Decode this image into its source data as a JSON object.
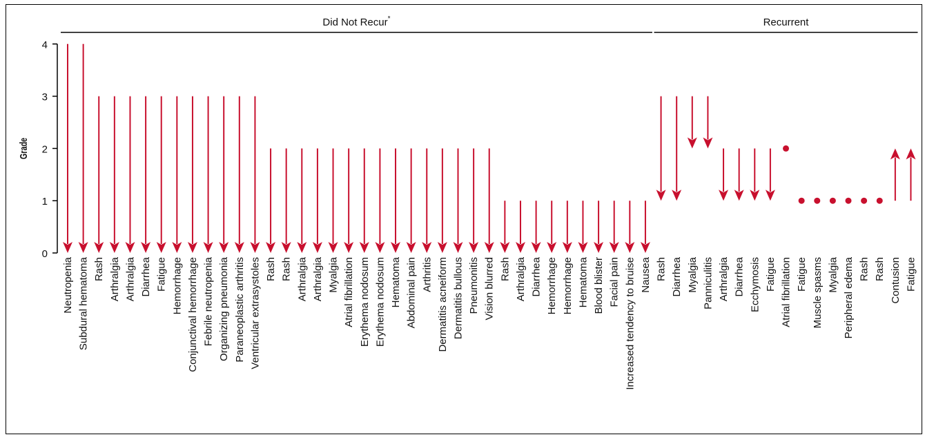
{
  "chart_data": {
    "type": "arrow",
    "ylabel": "Grade",
    "ylim": [
      0,
      4
    ],
    "yticks": [
      "0",
      "1",
      "2",
      "3",
      "4"
    ],
    "color": "#c8102e",
    "groups": [
      {
        "label": "Did Not Recur",
        "superscript": "*",
        "start": 0,
        "end": 37
      },
      {
        "label": "Recurrent",
        "start": 38,
        "end": 54
      }
    ],
    "events": [
      {
        "label": "Neutropenia",
        "from": 4,
        "to": 0
      },
      {
        "label": "Subdural hematoma",
        "from": 4,
        "to": 0
      },
      {
        "label": "Rash",
        "from": 3,
        "to": 0
      },
      {
        "label": "Arthralgia",
        "from": 3,
        "to": 0
      },
      {
        "label": "Arthralgia",
        "from": 3,
        "to": 0
      },
      {
        "label": "Diarrhea",
        "from": 3,
        "to": 0
      },
      {
        "label": "Fatigue",
        "from": 3,
        "to": 0
      },
      {
        "label": "Hemorrhage",
        "from": 3,
        "to": 0
      },
      {
        "label": "Conjunctival hemorrhage",
        "from": 3,
        "to": 0
      },
      {
        "label": "Febrile neutropenia",
        "from": 3,
        "to": 0
      },
      {
        "label": "Organizing pneumonia",
        "from": 3,
        "to": 0
      },
      {
        "label": "Paraneoplastic arthritis",
        "from": 3,
        "to": 0
      },
      {
        "label": "Ventricular extrasystoles",
        "from": 3,
        "to": 0
      },
      {
        "label": "Rash",
        "from": 2,
        "to": 0
      },
      {
        "label": "Rash",
        "from": 2,
        "to": 0
      },
      {
        "label": "Arthralgia",
        "from": 2,
        "to": 0
      },
      {
        "label": "Arthralgia",
        "from": 2,
        "to": 0
      },
      {
        "label": "Myalgia",
        "from": 2,
        "to": 0
      },
      {
        "label": "Atrial fibrillation",
        "from": 2,
        "to": 0
      },
      {
        "label": "Erythema nodosum",
        "from": 2,
        "to": 0
      },
      {
        "label": "Erythema nodosum",
        "from": 2,
        "to": 0
      },
      {
        "label": "Hematoma",
        "from": 2,
        "to": 0
      },
      {
        "label": "Abdominal pain",
        "from": 2,
        "to": 0
      },
      {
        "label": "Arthritis",
        "from": 2,
        "to": 0
      },
      {
        "label": "Dermatitis acneiform",
        "from": 2,
        "to": 0
      },
      {
        "label": "Dermatitis bullous",
        "from": 2,
        "to": 0
      },
      {
        "label": "Pneumonitis",
        "from": 2,
        "to": 0
      },
      {
        "label": "Vision blurred",
        "from": 2,
        "to": 0
      },
      {
        "label": "Rash",
        "from": 1,
        "to": 0
      },
      {
        "label": "Arthralgia",
        "from": 1,
        "to": 0
      },
      {
        "label": "Diarrhea",
        "from": 1,
        "to": 0
      },
      {
        "label": "Hemorrhage",
        "from": 1,
        "to": 0
      },
      {
        "label": "Hemorrhage",
        "from": 1,
        "to": 0
      },
      {
        "label": "Hematoma",
        "from": 1,
        "to": 0
      },
      {
        "label": "Blood blister",
        "from": 1,
        "to": 0
      },
      {
        "label": "Facial pain",
        "from": 1,
        "to": 0
      },
      {
        "label": "Increased tendency to bruise",
        "from": 1,
        "to": 0
      },
      {
        "label": "Nausea",
        "from": 1,
        "to": 0
      },
      {
        "label": "Rash",
        "from": 3,
        "to": 1
      },
      {
        "label": "Diarrhea",
        "from": 3,
        "to": 1
      },
      {
        "label": "Myalgia",
        "from": 3,
        "to": 2
      },
      {
        "label": "Panniculitis",
        "from": 3,
        "to": 2
      },
      {
        "label": "Arthralgia",
        "from": 2,
        "to": 1
      },
      {
        "label": "Diarrhea",
        "from": 2,
        "to": 1
      },
      {
        "label": "Ecchymosis",
        "from": 2,
        "to": 1
      },
      {
        "label": "Fatigue",
        "from": 2,
        "to": 1
      },
      {
        "label": "Atrial fibrillation",
        "from": 2,
        "to": 2
      },
      {
        "label": "Fatigue",
        "from": 1,
        "to": 1
      },
      {
        "label": "Muscle spasms",
        "from": 1,
        "to": 1
      },
      {
        "label": "Myalgia",
        "from": 1,
        "to": 1
      },
      {
        "label": "Peripheral edema",
        "from": 1,
        "to": 1
      },
      {
        "label": "Rash",
        "from": 1,
        "to": 1
      },
      {
        "label": "Rash",
        "from": 1,
        "to": 1
      },
      {
        "label": "Contusion",
        "from": 1,
        "to": 2
      },
      {
        "label": "Fatigue",
        "from": 1,
        "to": 2
      }
    ]
  }
}
